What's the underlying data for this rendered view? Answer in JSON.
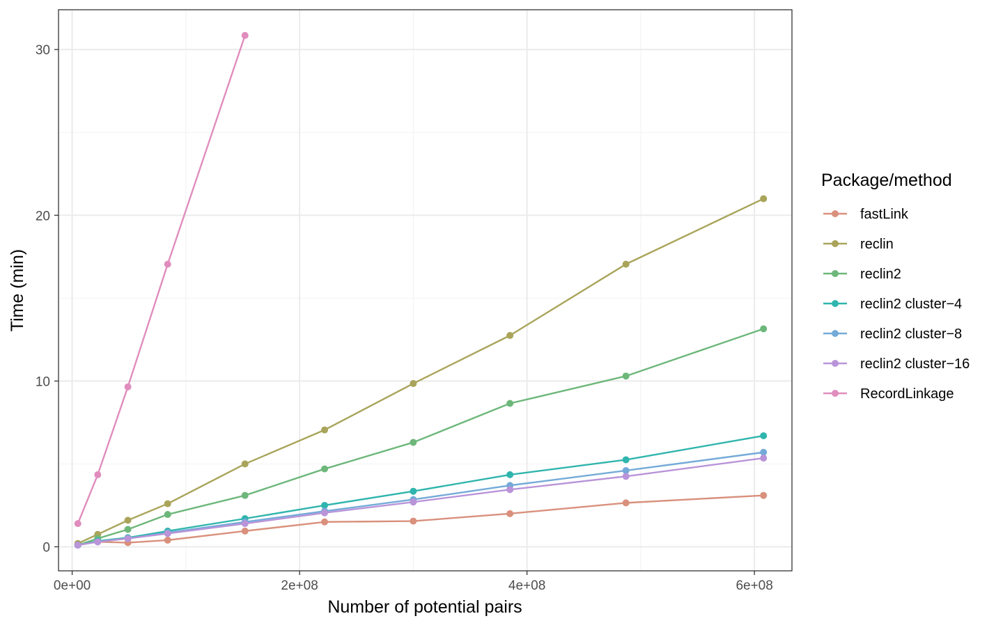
{
  "chart_data": {
    "type": "line",
    "xlabel": "Number of potential pairs",
    "ylabel": "Time (min)",
    "xlim": [
      -12000000,
      633000000
    ],
    "ylim": [
      -1.45,
      32.4
    ],
    "x_ticks": [
      0,
      200000000,
      400000000,
      600000000
    ],
    "x_tick_labels": [
      "0e+00",
      "2e+08",
      "4e+08",
      "6e+08"
    ],
    "y_ticks": [
      0,
      10,
      20,
      30
    ],
    "y_tick_labels": [
      "0",
      "10",
      "20",
      "30"
    ],
    "x_minor": [
      100000000,
      300000000,
      500000000
    ],
    "y_minor": [
      5,
      15,
      25
    ],
    "grid": true,
    "legend": {
      "title": "Package/method",
      "position": "right"
    },
    "series": [
      {
        "name": "fastLink",
        "color": "#d9907c",
        "x": [
          5000000,
          22500000,
          49000000,
          84000000,
          152000000,
          222000000,
          300000000,
          385000000,
          487000000,
          608000000
        ],
        "y": [
          0.15,
          0.3,
          0.25,
          0.4,
          0.95,
          1.5,
          1.55,
          2.0,
          2.65,
          3.1
        ]
      },
      {
        "name": "reclin",
        "color": "#a9a45a",
        "x": [
          5000000,
          22500000,
          49000000,
          84000000,
          152000000,
          222000000,
          300000000,
          385000000,
          487000000,
          608000000
        ],
        "y": [
          0.2,
          0.75,
          1.6,
          2.6,
          5.0,
          7.05,
          9.85,
          12.75,
          17.05,
          21.0
        ]
      },
      {
        "name": "reclin2",
        "color": "#6db77a",
        "x": [
          5000000,
          22500000,
          49000000,
          84000000,
          152000000,
          222000000,
          300000000,
          385000000,
          487000000,
          608000000
        ],
        "y": [
          0.1,
          0.5,
          1.05,
          1.95,
          3.1,
          4.7,
          6.3,
          8.65,
          10.3,
          13.15
        ]
      },
      {
        "name": "reclin2 cluster−4",
        "color": "#2fb5ad",
        "x": [
          5000000,
          22500000,
          49000000,
          84000000,
          152000000,
          222000000,
          300000000,
          385000000,
          487000000,
          608000000
        ],
        "y": [
          0.1,
          0.35,
          0.55,
          0.95,
          1.7,
          2.5,
          3.35,
          4.35,
          5.25,
          6.7
        ]
      },
      {
        "name": "reclin2 cluster−8",
        "color": "#74aad8",
        "x": [
          5000000,
          22500000,
          49000000,
          84000000,
          152000000,
          222000000,
          300000000,
          385000000,
          487000000,
          608000000
        ],
        "y": [
          0.1,
          0.3,
          0.5,
          0.85,
          1.5,
          2.15,
          2.85,
          3.7,
          4.6,
          5.7
        ]
      },
      {
        "name": "reclin2 cluster−16",
        "color": "#b994d9",
        "x": [
          5000000,
          22500000,
          49000000,
          84000000,
          152000000,
          222000000,
          300000000,
          385000000,
          487000000,
          608000000
        ],
        "y": [
          0.1,
          0.3,
          0.5,
          0.8,
          1.4,
          2.05,
          2.7,
          3.45,
          4.25,
          5.35
        ]
      },
      {
        "name": "RecordLinkage",
        "color": "#e08dbd",
        "x": [
          5000000,
          22500000,
          49000000,
          84000000,
          152000000
        ],
        "y": [
          1.4,
          4.35,
          9.65,
          17.05,
          30.85
        ]
      }
    ]
  }
}
